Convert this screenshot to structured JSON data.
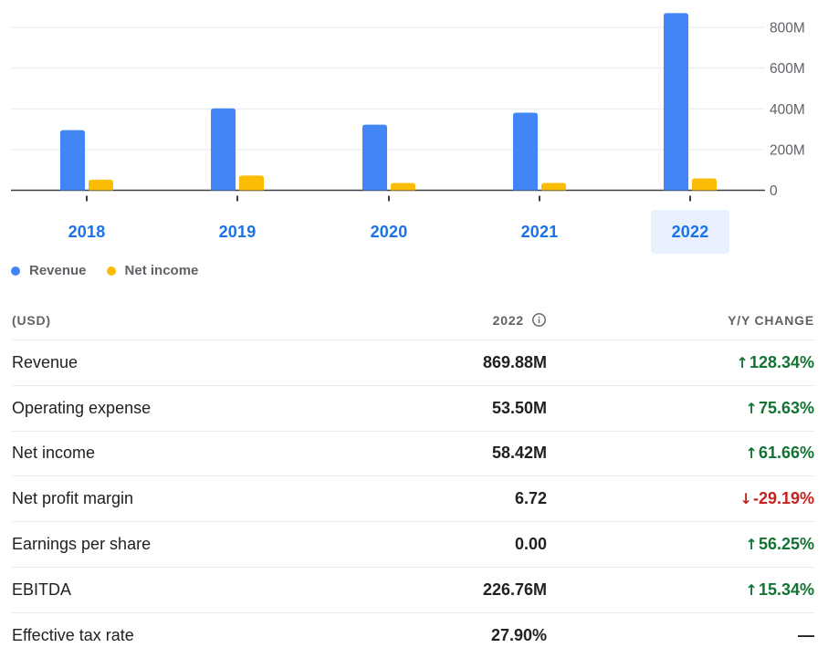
{
  "chart_data": {
    "type": "bar",
    "categories": [
      "2018",
      "2019",
      "2020",
      "2021",
      "2022"
    ],
    "series": [
      {
        "name": "Revenue",
        "color": "#4285f4",
        "values": [
          295,
          402,
          322,
          381,
          870
        ]
      },
      {
        "name": "Net income",
        "color": "#fbbc04",
        "values": [
          52,
          72,
          36,
          36,
          58
        ]
      }
    ],
    "ylim": [
      0,
      850
    ],
    "yticks": [
      0,
      200,
      400,
      600,
      800
    ],
    "ytick_labels": [
      "0",
      "200M",
      "400M",
      "600M",
      "800M"
    ],
    "selected_category": "2022",
    "grid": true,
    "legend_position": "bottom-left"
  },
  "table": {
    "header": {
      "currency": "(USD)",
      "period": "2022",
      "change": "Y/Y CHANGE"
    },
    "rows": [
      {
        "label": "Revenue",
        "value": "869.88M",
        "change": "128.34%",
        "direction": "up"
      },
      {
        "label": "Operating expense",
        "value": "53.50M",
        "change": "75.63%",
        "direction": "up"
      },
      {
        "label": "Net income",
        "value": "58.42M",
        "change": "61.66%",
        "direction": "up"
      },
      {
        "label": "Net profit margin",
        "value": "6.72",
        "change": "-29.19%",
        "direction": "down"
      },
      {
        "label": "Earnings per share",
        "value": "0.00",
        "change": "56.25%",
        "direction": "up"
      },
      {
        "label": "EBITDA",
        "value": "226.76M",
        "change": "15.34%",
        "direction": "up"
      },
      {
        "label": "Effective tax rate",
        "value": "27.90%",
        "change": "—",
        "direction": "none"
      }
    ]
  },
  "icons": {
    "info": "info-icon",
    "up": "arrow-up-icon",
    "down": "arrow-down-icon"
  }
}
